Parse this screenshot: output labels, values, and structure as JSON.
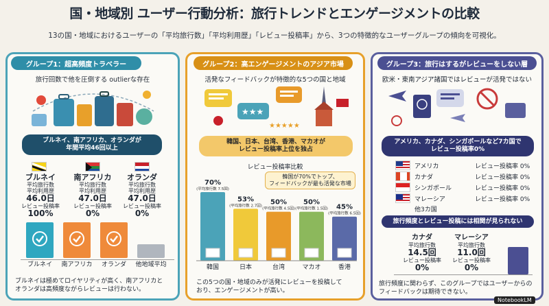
{
  "title": "国・地域別 ユーザー行動分析：旅行トレンドとエンゲージメントの比較",
  "subtitle": "13の国・地域におけるユーザーの「平均旅行数」「平均利用歴」「レビュー投稿率」から、3つの特徴的なユーザーグループの傾向を可視化。",
  "group1": {
    "header": "グループ1：超高頻度トラベラー",
    "subhead": "旅行回数で他を圧倒する outlierな存在",
    "pill": [
      "ブルネイ、南アフリカ、オランダが",
      "年間平均46回以上"
    ],
    "countries": [
      {
        "name": "ブルネイ",
        "l1": "平均旅行数",
        "l2": "平均利用歴",
        "value": "46.0日",
        "l3": "レビュー投稿率",
        "rate": "100%"
      },
      {
        "name": "南アフリカ",
        "l1": "平均旅行数",
        "l2": "平均利用歴",
        "value": "47.0日",
        "l3": "レビュー投稿率",
        "rate": "0%"
      },
      {
        "name": "オランダ",
        "l1": "平均旅行数",
        "l2": "平均利用歴",
        "value": "47.0日",
        "l3": "レビュー投稿率",
        "rate": "0%"
      }
    ],
    "bar_labels": [
      "ブルネイ",
      "南アフリカ",
      "オランダ",
      "他地域平均"
    ],
    "note": [
      "ブルネイは極めてロイヤリティが高く、南アフリカと",
      "オランダは高頻度ながらレビューは行わない。"
    ]
  },
  "group2": {
    "header": "グループ2：高エンゲージメントのアジア市場",
    "subhead": "活発なフィードバックが特徴的な5つの国と地域",
    "pill": [
      "韓国、日本、台湾、香港、マカオが",
      "レビュー投稿率上位を独占"
    ],
    "chart_title": "レビュー投稿率比較",
    "callout": [
      "韓国が70%でトップ、",
      "フィードバックが最も活発な市場"
    ],
    "note": [
      "この5つの国・地域のみが活発にレビューを投稿して",
      "おり、エンゲージメントが高い。"
    ]
  },
  "group3": {
    "header": "グループ3：旅行はするがレビューをしない層",
    "subhead": "欧米・東南アジア諸国ではレビューが活発ではない",
    "pill": [
      "アメリカ、カナダ、シンガポールなど7カ国で",
      "レビュー投稿率0%"
    ],
    "rows": [
      {
        "name": "アメリカ",
        "label": "レビュー投稿率 0%"
      },
      {
        "name": "カナダ",
        "label": "レビュー投稿率 0%"
      },
      {
        "name": "シンガポール",
        "label": "レビュー投稿率 0%"
      },
      {
        "name": "マレーシア",
        "label": "レビュー投稿率 0%"
      }
    ],
    "others": "他3カ国",
    "corr_pill": "旅行頻度とレビュー投稿には相関が見られない",
    "countries": [
      {
        "name": "カナダ",
        "l1": "平均旅行数",
        "value": "14.5回",
        "l2": "レビュー投稿率",
        "rate": "0%"
      },
      {
        "name": "マレーシア",
        "l1": "平均旅行数",
        "value": "11.0回",
        "l2": "レビュー投稿率",
        "rate": "0%"
      }
    ],
    "note": [
      "旅行頻度に関わらず、このグループではユーザーからの",
      "フィードバックは期待できない。"
    ]
  },
  "chart_data": {
    "type": "bar",
    "title": "レビュー投稿率比較",
    "categories": [
      "韓国",
      "日本",
      "台湾",
      "マカオ",
      "香港"
    ],
    "values": [
      70,
      53,
      50,
      50,
      45
    ],
    "value_labels": [
      "70%",
      "53%",
      "50%",
      "50%",
      "45%"
    ],
    "sublabels": [
      "(平均旅行数 7.5回)",
      "(平均旅行数 2.7回)",
      "(平均旅行数 4.5回)",
      "(平均旅行数 1.5回)",
      "(平均旅行数 6.5回)"
    ],
    "colors": [
      "#4ba3b8",
      "#f0c93a",
      "#e89a2a",
      "#8cb85c",
      "#5a6aa8"
    ],
    "ylim": [
      0,
      70
    ]
  },
  "brand": "NotebookLM",
  "colors": {
    "teal": "#2f8ea8",
    "orange": "#d89016",
    "indigo": "#4b4f92"
  }
}
